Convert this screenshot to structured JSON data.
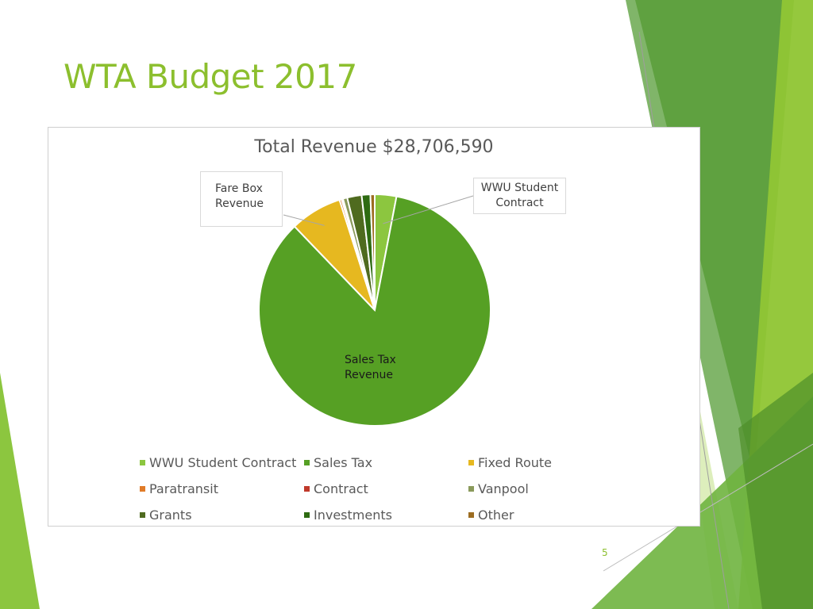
{
  "slide": {
    "title": "WTA Budget 2017",
    "page_number": "5",
    "accent_color": "#8cbf2e"
  },
  "chart_data": {
    "type": "pie",
    "title": "Total Revenue $28,706,590",
    "legend_position": "bottom",
    "series": [
      {
        "name": "WWU Student Contract",
        "value": 3.0,
        "color": "#8cc63f"
      },
      {
        "name": "Sales Tax",
        "value": 84.4,
        "color": "#56a024"
      },
      {
        "name": "Fixed Route",
        "value": 7.2,
        "color": "#e6b820"
      },
      {
        "name": "Paratransit",
        "value": 0.3,
        "color": "#e07b28"
      },
      {
        "name": "Contract",
        "value": 0.2,
        "color": "#c0392b"
      },
      {
        "name": "Vanpool",
        "value": 0.6,
        "color": "#8a9a5b"
      },
      {
        "name": "Grants",
        "value": 2.0,
        "color": "#4f6b1f"
      },
      {
        "name": "Investments",
        "value": 1.2,
        "color": "#2e6b12"
      },
      {
        "name": "Other",
        "value": 0.6,
        "color": "#9c6d21"
      }
    ],
    "annotations": {
      "fare_box_line1": "Fare Box",
      "fare_box_line2": "Revenue",
      "wwu_line1": "WWU Student",
      "wwu_line2": "Contract",
      "sales_tax_line1": "Sales Tax",
      "sales_tax_line2": "Revenue"
    }
  }
}
